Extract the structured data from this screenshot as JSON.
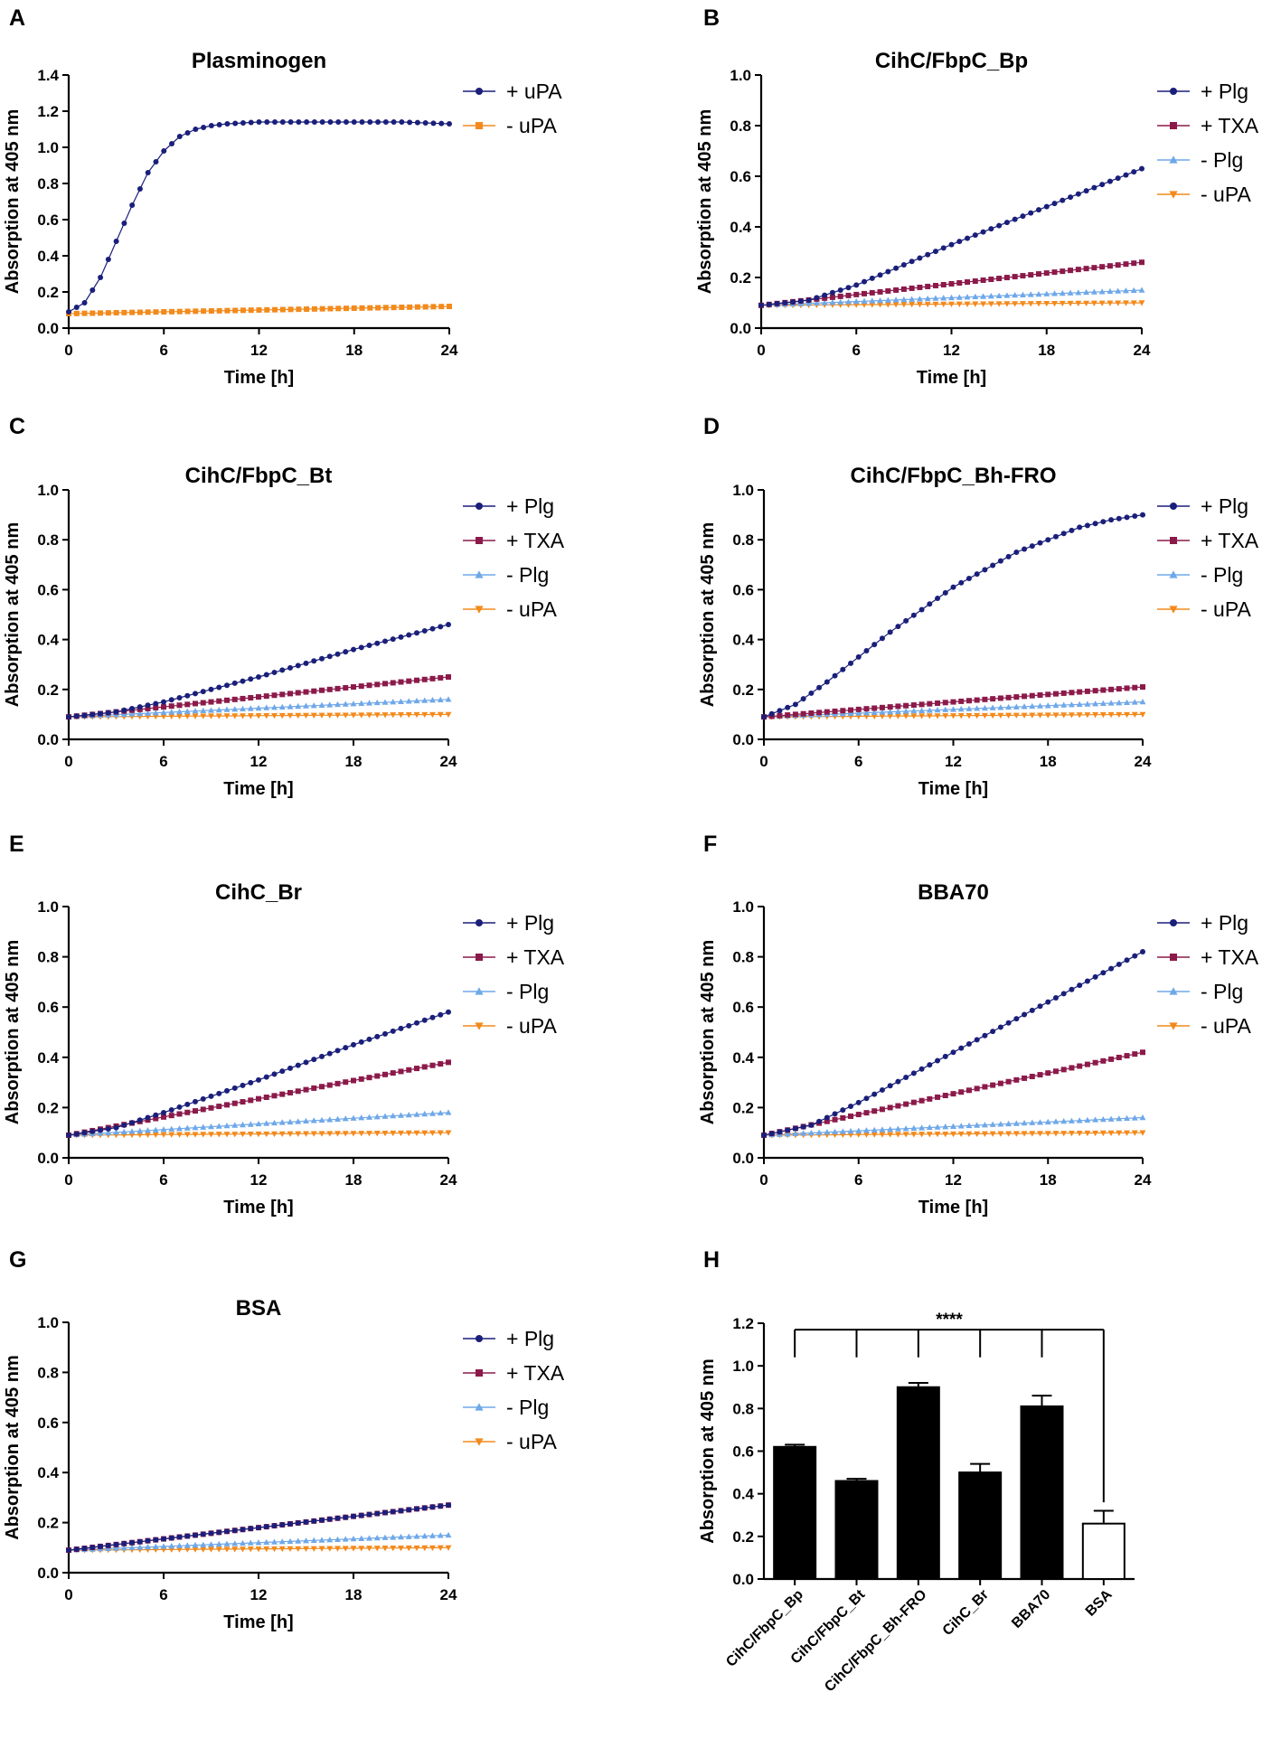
{
  "figure": {
    "panels": [
      {
        "letter": "A",
        "title": "Plasminogen"
      },
      {
        "letter": "B",
        "title": "CihC/FbpC_Bp"
      },
      {
        "letter": "C",
        "title": "CihC/FbpC_Bt"
      },
      {
        "letter": "D",
        "title": "CihC/FbpC_Bh-FRO"
      },
      {
        "letter": "E",
        "title": "CihC_Br"
      },
      {
        "letter": "F",
        "title": "BBA70"
      },
      {
        "letter": "G",
        "title": "BSA"
      },
      {
        "letter": "H",
        "title": ""
      }
    ]
  },
  "colors": {
    "plg": "#1a1f7a",
    "txa": "#8b1a4a",
    "minus_plg": "#6fa8e8",
    "minus_upa": "#f28a1c",
    "bar_fill": "#000000",
    "bar_open": "#ffffff"
  },
  "chart_data": [
    {
      "panel": "A",
      "type": "line",
      "title": "Plasminogen",
      "xlabel": "Time [h]",
      "ylabel": "Absorption at 405 nm",
      "xlim": [
        0,
        24
      ],
      "ylim": [
        0,
        1.4
      ],
      "xticks": [
        "0",
        "6",
        "12",
        "18",
        "24"
      ],
      "yticks": [
        "0.0",
        "0.2",
        "0.4",
        "0.6",
        "0.8",
        "1.0",
        "1.2",
        "1.4"
      ],
      "legend_position": "top-right",
      "series": [
        {
          "name": "+ uPA",
          "marker": "circle",
          "color_key": "plg",
          "x": [
            0,
            1,
            2,
            3,
            4,
            5,
            6,
            7,
            8,
            9,
            10,
            12,
            15,
            18,
            21,
            24
          ],
          "y": [
            0.09,
            0.14,
            0.28,
            0.48,
            0.68,
            0.86,
            0.98,
            1.06,
            1.1,
            1.12,
            1.13,
            1.14,
            1.14,
            1.14,
            1.14,
            1.13
          ]
        },
        {
          "name": "- uPA",
          "marker": "square",
          "color_key": "minus_upa",
          "x": [
            0,
            24
          ],
          "y": [
            0.08,
            0.12
          ]
        }
      ]
    },
    {
      "panel": "B",
      "type": "line",
      "title": "CihC/FbpC_Bp",
      "xlabel": "Time [h]",
      "ylabel": "Absorption at 405 nm",
      "xlim": [
        0,
        24
      ],
      "ylim": [
        0,
        1.0
      ],
      "xticks": [
        "0",
        "6",
        "12",
        "18",
        "24"
      ],
      "yticks": [
        "0.0",
        "0.2",
        "0.4",
        "0.6",
        "0.8",
        "1.0"
      ],
      "legend_position": "top-right",
      "series": [
        {
          "name": "+ Plg",
          "marker": "circle",
          "color_key": "plg",
          "x": [
            0,
            3,
            6,
            12,
            18,
            24
          ],
          "y": [
            0.09,
            0.11,
            0.17,
            0.33,
            0.48,
            0.63
          ]
        },
        {
          "name": "+ TXA",
          "marker": "square",
          "color_key": "txa",
          "x": [
            0,
            24
          ],
          "y": [
            0.09,
            0.26
          ]
        },
        {
          "name": "- Plg",
          "marker": "triangle",
          "color_key": "minus_plg",
          "x": [
            0,
            24
          ],
          "y": [
            0.09,
            0.15
          ]
        },
        {
          "name": "- uPA",
          "marker": "triangle-down",
          "color_key": "minus_upa",
          "x": [
            0,
            24
          ],
          "y": [
            0.09,
            0.1
          ]
        }
      ]
    },
    {
      "panel": "C",
      "type": "line",
      "title": "CihC/FbpC_Bt",
      "xlabel": "Time [h]",
      "ylabel": "Absorption at 405 nm",
      "xlim": [
        0,
        24
      ],
      "ylim": [
        0,
        1.0
      ],
      "xticks": [
        "0",
        "6",
        "12",
        "18",
        "24"
      ],
      "yticks": [
        "0.0",
        "0.2",
        "0.4",
        "0.6",
        "0.8",
        "1.0"
      ],
      "legend_position": "top-right",
      "series": [
        {
          "name": "+ Plg",
          "marker": "circle",
          "color_key": "plg",
          "x": [
            0,
            3,
            6,
            12,
            18,
            24
          ],
          "y": [
            0.09,
            0.11,
            0.15,
            0.25,
            0.36,
            0.46
          ]
        },
        {
          "name": "+ TXA",
          "marker": "square",
          "color_key": "txa",
          "x": [
            0,
            24
          ],
          "y": [
            0.09,
            0.25
          ]
        },
        {
          "name": "- Plg",
          "marker": "triangle",
          "color_key": "minus_plg",
          "x": [
            0,
            24
          ],
          "y": [
            0.09,
            0.16
          ]
        },
        {
          "name": "- uPA",
          "marker": "triangle-down",
          "color_key": "minus_upa",
          "x": [
            0,
            24
          ],
          "y": [
            0.09,
            0.1
          ]
        }
      ]
    },
    {
      "panel": "D",
      "type": "line",
      "title": "CihC/FbpC_Bh-FRO",
      "xlabel": "Time [h]",
      "ylabel": "Absorption at 405 nm",
      "xlim": [
        0,
        24
      ],
      "ylim": [
        0,
        1.0
      ],
      "xticks": [
        "0",
        "6",
        "12",
        "18",
        "24"
      ],
      "yticks": [
        "0.0",
        "0.2",
        "0.4",
        "0.6",
        "0.8",
        "1.0"
      ],
      "legend_position": "top-right",
      "series": [
        {
          "name": "+ Plg",
          "marker": "circle",
          "color_key": "plg",
          "x": [
            0,
            2,
            4,
            6,
            8,
            10,
            12,
            14,
            16,
            18,
            20,
            22,
            24
          ],
          "y": [
            0.09,
            0.14,
            0.23,
            0.33,
            0.43,
            0.52,
            0.61,
            0.68,
            0.75,
            0.8,
            0.85,
            0.88,
            0.9
          ]
        },
        {
          "name": "+ TXA",
          "marker": "square",
          "color_key": "txa",
          "x": [
            0,
            24
          ],
          "y": [
            0.09,
            0.21
          ]
        },
        {
          "name": "- Plg",
          "marker": "triangle",
          "color_key": "minus_plg",
          "x": [
            0,
            24
          ],
          "y": [
            0.09,
            0.15
          ]
        },
        {
          "name": "- uPA",
          "marker": "triangle-down",
          "color_key": "minus_upa",
          "x": [
            0,
            24
          ],
          "y": [
            0.09,
            0.1
          ]
        }
      ]
    },
    {
      "panel": "E",
      "type": "line",
      "title": "CihC_Br",
      "xlabel": "Time [h]",
      "ylabel": "Absorption at 405 nm",
      "xlim": [
        0,
        24
      ],
      "ylim": [
        0,
        1.0
      ],
      "xticks": [
        "0",
        "6",
        "12",
        "18",
        "24"
      ],
      "yticks": [
        "0.0",
        "0.2",
        "0.4",
        "0.6",
        "0.8",
        "1.0"
      ],
      "legend_position": "top-right",
      "series": [
        {
          "name": "+ Plg",
          "marker": "circle",
          "color_key": "plg",
          "x": [
            0,
            3,
            6,
            12,
            18,
            24
          ],
          "y": [
            0.09,
            0.12,
            0.18,
            0.31,
            0.45,
            0.58
          ]
        },
        {
          "name": "+ TXA",
          "marker": "square",
          "color_key": "txa",
          "x": [
            0,
            24
          ],
          "y": [
            0.09,
            0.38
          ]
        },
        {
          "name": "- Plg",
          "marker": "triangle",
          "color_key": "minus_plg",
          "x": [
            0,
            24
          ],
          "y": [
            0.09,
            0.18
          ]
        },
        {
          "name": "- uPA",
          "marker": "triangle-down",
          "color_key": "minus_upa",
          "x": [
            0,
            24
          ],
          "y": [
            0.09,
            0.1
          ]
        }
      ]
    },
    {
      "panel": "F",
      "type": "line",
      "title": "BBA70",
      "xlabel": "Time [h]",
      "ylabel": "Absorption at 405 nm",
      "xlim": [
        0,
        24
      ],
      "ylim": [
        0,
        1.0
      ],
      "xticks": [
        "0",
        "6",
        "12",
        "18",
        "24"
      ],
      "yticks": [
        "0.0",
        "0.2",
        "0.4",
        "0.6",
        "0.8",
        "1.0"
      ],
      "legend_position": "top-right",
      "series": [
        {
          "name": "+ Plg",
          "marker": "circle",
          "color_key": "plg",
          "x": [
            0,
            3,
            6,
            12,
            18,
            24
          ],
          "y": [
            0.09,
            0.13,
            0.22,
            0.42,
            0.62,
            0.82
          ]
        },
        {
          "name": "+ TXA",
          "marker": "square",
          "color_key": "txa",
          "x": [
            0,
            24
          ],
          "y": [
            0.09,
            0.42
          ]
        },
        {
          "name": "- Plg",
          "marker": "triangle",
          "color_key": "minus_plg",
          "x": [
            0,
            24
          ],
          "y": [
            0.09,
            0.16
          ]
        },
        {
          "name": "- uPA",
          "marker": "triangle-down",
          "color_key": "minus_upa",
          "x": [
            0,
            24
          ],
          "y": [
            0.09,
            0.1
          ]
        }
      ]
    },
    {
      "panel": "G",
      "type": "line",
      "title": "BSA",
      "xlabel": "Time [h]",
      "ylabel": "Absorption at 405 nm",
      "xlim": [
        0,
        24
      ],
      "ylim": [
        0,
        1.0
      ],
      "xticks": [
        "0",
        "6",
        "12",
        "18",
        "24"
      ],
      "yticks": [
        "0.0",
        "0.2",
        "0.4",
        "0.6",
        "0.8",
        "1.0"
      ],
      "legend_position": "top-right",
      "series": [
        {
          "name": "+ Plg",
          "marker": "circle",
          "color_key": "plg",
          "x": [
            0,
            24
          ],
          "y": [
            0.09,
            0.27
          ]
        },
        {
          "name": "+ TXA",
          "marker": "square",
          "color_key": "txa",
          "x": [
            0,
            24
          ],
          "y": [
            0.09,
            0.27
          ]
        },
        {
          "name": "- Plg",
          "marker": "triangle",
          "color_key": "minus_plg",
          "x": [
            0,
            24
          ],
          "y": [
            0.09,
            0.15
          ]
        },
        {
          "name": "- uPA",
          "marker": "triangle-down",
          "color_key": "minus_upa",
          "x": [
            0,
            24
          ],
          "y": [
            0.09,
            0.1
          ]
        }
      ]
    },
    {
      "panel": "H",
      "type": "bar",
      "title": "",
      "xlabel": "",
      "ylabel": "Absorption at 405 nm",
      "ylim": [
        0,
        1.2
      ],
      "yticks": [
        "0.0",
        "0.2",
        "0.4",
        "0.6",
        "0.8",
        "1.0",
        "1.2"
      ],
      "categories": [
        "CihC/FbpC_Bp",
        "CihC/FbpC_Bt",
        "CihC/FbpC_Bh-FRO",
        "CihC_Br",
        "BBA70",
        "BSA"
      ],
      "values": [
        0.62,
        0.46,
        0.9,
        0.5,
        0.81,
        0.26
      ],
      "errors": [
        0.01,
        0.01,
        0.02,
        0.04,
        0.05,
        0.06
      ],
      "fills": [
        "filled",
        "filled",
        "filled",
        "filled",
        "filled",
        "open"
      ],
      "significance": {
        "label": "****",
        "compare_to": "BSA",
        "groups": [
          "CihC/FbpC_Bp",
          "CihC/FbpC_Bt",
          "CihC/FbpC_Bh-FRO",
          "CihC_Br",
          "BBA70"
        ]
      }
    }
  ]
}
